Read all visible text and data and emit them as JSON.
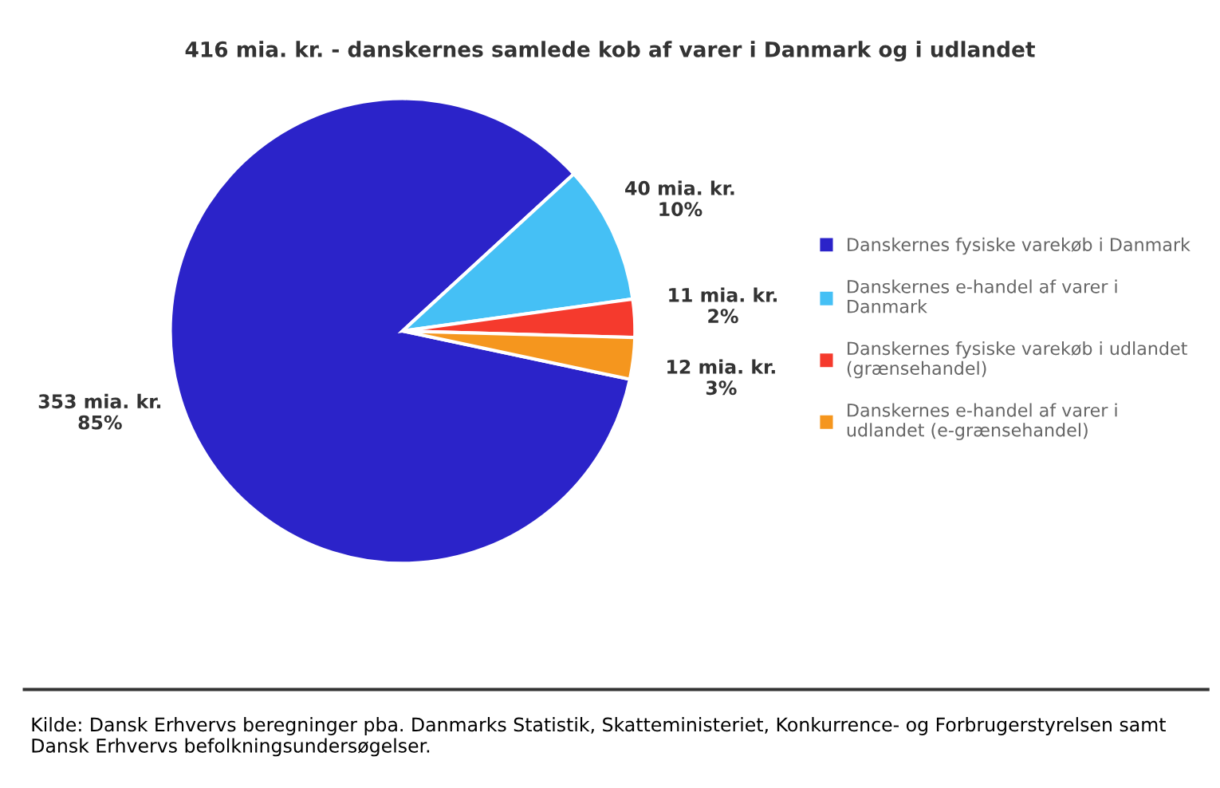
{
  "chart_data": {
    "type": "pie",
    "title": "416 mia. kr. - danskernes samlede kob af varer i Danmark og i udlandet",
    "categories": [
      "Danskernes fysiske varekøb i Danmark",
      "Danskernes e-handel af varer i Danmark",
      "Danskernes fysiske varekøb i udlandet (grænsehandel)",
      "Danskernes e-handel af varer i udlandet (e-grænsehandel)"
    ],
    "values": [
      353,
      40,
      11,
      12
    ],
    "colors": [
      "#2b23c9",
      "#45c0f5",
      "#f53a2d",
      "#f5961e"
    ],
    "value_labels": [
      "353 mia. kr.\n85%",
      "40 mia. kr.\n10%",
      "11 mia. kr.\n2%",
      "12 mia. kr.\n3%"
    ],
    "legend": "right",
    "annotations": [
      "Kilde: Dansk Erhvervs beregninger pba. Danmarks Statistik, Skatteministeriet, Konkurrence- og Forbrugerstyrelsen samt Dansk Erhvervs befolkningsundersøgelser."
    ]
  }
}
